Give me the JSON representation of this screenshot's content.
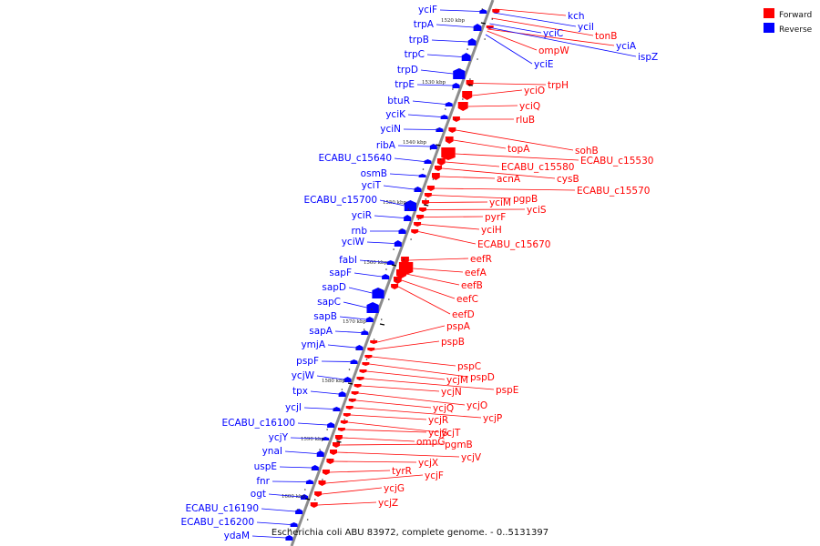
{
  "caption": "Escherichia coli ABU 83972, complete genome. - 0..5131397",
  "legend": [
    {
      "label": "Forward",
      "color": "#ff0000"
    },
    {
      "label": "Reverse",
      "color": "#0000ff"
    }
  ],
  "colors": {
    "forward": "#ff0000",
    "reverse": "#0000ff",
    "backbone": "#8c8c8c"
  },
  "ticks": [
    "1520 kbp",
    "1530 kbp",
    "1540 kbp",
    "1550 kbp",
    "1560 kbp",
    "1570 kbp",
    "1580 kbp",
    "1590 kbp",
    "1600 kbp"
  ],
  "reverse_labels": [
    "yciF",
    "trpA",
    "trpB",
    "trpC",
    "trpD",
    "trpE",
    "btuR",
    "yciK",
    "yciN",
    "ribA",
    "ECABU_c15640",
    "osmB",
    "yciT",
    "ECABU_c15700",
    "yciR",
    "rnb",
    "yciW",
    "fabI",
    "sapF",
    "sapD",
    "sapC",
    "sapB",
    "sapA",
    "ymjA",
    "pspF",
    "ycjW",
    "tpx",
    "ycjI",
    "ECABU_c16100",
    "ycjY",
    "ynaI",
    "uspE",
    "fnr",
    "ogt",
    "ECABU_c16190",
    "ECABU_c16200",
    "ydaM"
  ],
  "forward_labels_top": [
    "kch",
    "yciI",
    "tonB",
    "yciC",
    "yciA",
    "ispZ",
    "ompW",
    "yciE"
  ],
  "forward_labels": [
    "trpH",
    "yciO",
    "yciQ",
    "rluB",
    "sohB",
    "topA",
    "ECABU_c15530",
    "ECABU_c15580",
    "cysB",
    "acnA",
    "ECABU_c15570",
    "pgpB",
    "yciM",
    "yciS",
    "pyrF",
    "yciH",
    "ECABU_c15670",
    "eefR",
    "eefA",
    "eefB",
    "eefC",
    "eefD",
    "pspA",
    "pspB",
    "pspC",
    "pspD",
    "ycjM",
    "pspE",
    "ycjN",
    "ycjO",
    "ycjQ",
    "ycjP",
    "ycjR",
    "ycjT",
    "ycjS",
    "ompG",
    "pgmB",
    "ycjV",
    "ycjX",
    "tyrR",
    "ycjF",
    "ycjG",
    "ycjZ"
  ]
}
